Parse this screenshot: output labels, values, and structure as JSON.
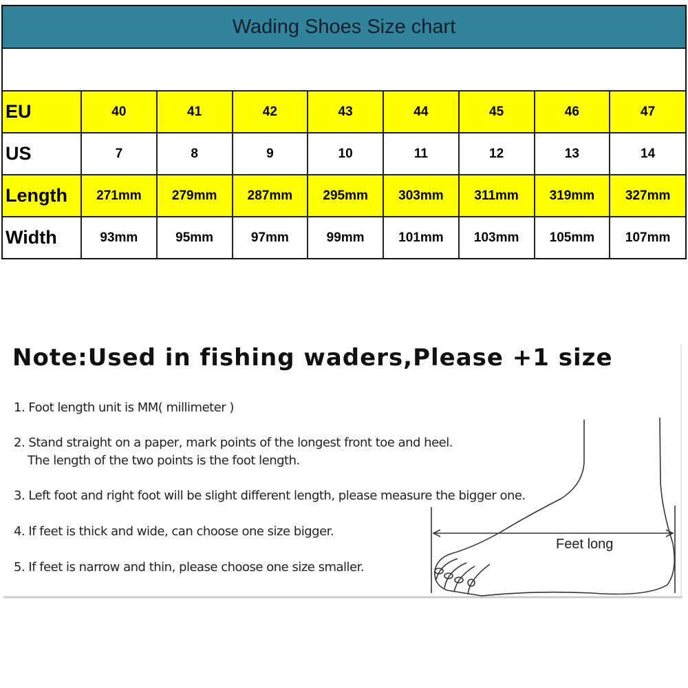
{
  "title": "Wading Shoes Size chart",
  "rows": [
    {
      "label": "EU",
      "values": [
        "40",
        "41",
        "42",
        "43",
        "44",
        "45",
        "46",
        "47"
      ],
      "highlight": true
    },
    {
      "label": "US",
      "values": [
        "7",
        "8",
        "9",
        "10",
        "11",
        "12",
        "13",
        "14"
      ],
      "highlight": false
    },
    {
      "label": "Length",
      "values": [
        "271mm",
        "279mm",
        "287mm",
        "295mm",
        "303mm",
        "311mm",
        "319mm",
        "327mm"
      ],
      "highlight": true
    },
    {
      "label": "Width",
      "values": [
        "93mm",
        "95mm",
        "97mm",
        "99mm",
        "101mm",
        "103mm",
        "105mm",
        "107mm"
      ],
      "highlight": false
    }
  ],
  "colors": {
    "header": "#32849c",
    "highlight": "#ffff00"
  },
  "note": "Note:Used in fishing waders,Please +1 size",
  "instructions": [
    "1. Foot length unit is MM( millimeter )",
    "2. Stand straight on a paper, mark points of the longest front toe and heel.",
    "The length of the two points is the foot length.",
    "3. Left foot and right foot will be slight different length, please measure the bigger one.",
    "4. If feet is thick and wide, can choose one size bigger.",
    "5. If feet is narrow and thin, please choose one size smaller."
  ],
  "diagram_label": "Feet long"
}
